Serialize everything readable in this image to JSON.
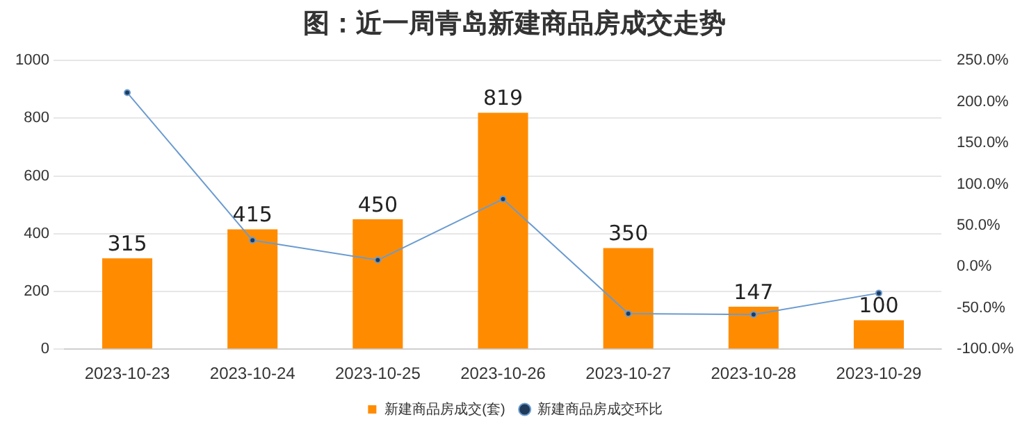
{
  "chart_data": {
    "type": "bar",
    "title": "图：近一周青岛新建商品房成交走势",
    "categories": [
      "2023-10-23",
      "2023-10-24",
      "2023-10-25",
      "2023-10-26",
      "2023-10-27",
      "2023-10-28",
      "2023-10-29"
    ],
    "series": [
      {
        "name": "新建商品房成交(套)",
        "color": "#ff8c00",
        "values": [
          315,
          415,
          450,
          819,
          350,
          147,
          100
        ],
        "value_labels": [
          "315",
          "415",
          "450",
          "819",
          "350",
          "147",
          "100"
        ]
      },
      {
        "name": "新建商品房成交环比",
        "type": "line",
        "axis": "y2",
        "color": "#6a9bd0",
        "values": [
          211,
          32,
          8,
          82,
          -57,
          -58,
          -32
        ]
      }
    ],
    "ylim": [
      0,
      1000
    ],
    "yticks": [
      0,
      200,
      400,
      600,
      800,
      1000
    ],
    "y2lim": [
      -100,
      250
    ],
    "y2ticks": [
      {
        "value": -100,
        "label": "-100.0%"
      },
      {
        "value": -50,
        "label": "-50.0%"
      },
      {
        "value": 0,
        "label": "0.0%"
      },
      {
        "value": 50,
        "label": "50.0%"
      },
      {
        "value": 100,
        "label": "100.0%"
      },
      {
        "value": 150,
        "label": "150.0%"
      },
      {
        "value": 200,
        "label": "200.0%"
      },
      {
        "value": 250,
        "label": "250.0%"
      }
    ],
    "grid": "y",
    "legend": "bottom",
    "marker": "circle",
    "line_style": "solid"
  }
}
